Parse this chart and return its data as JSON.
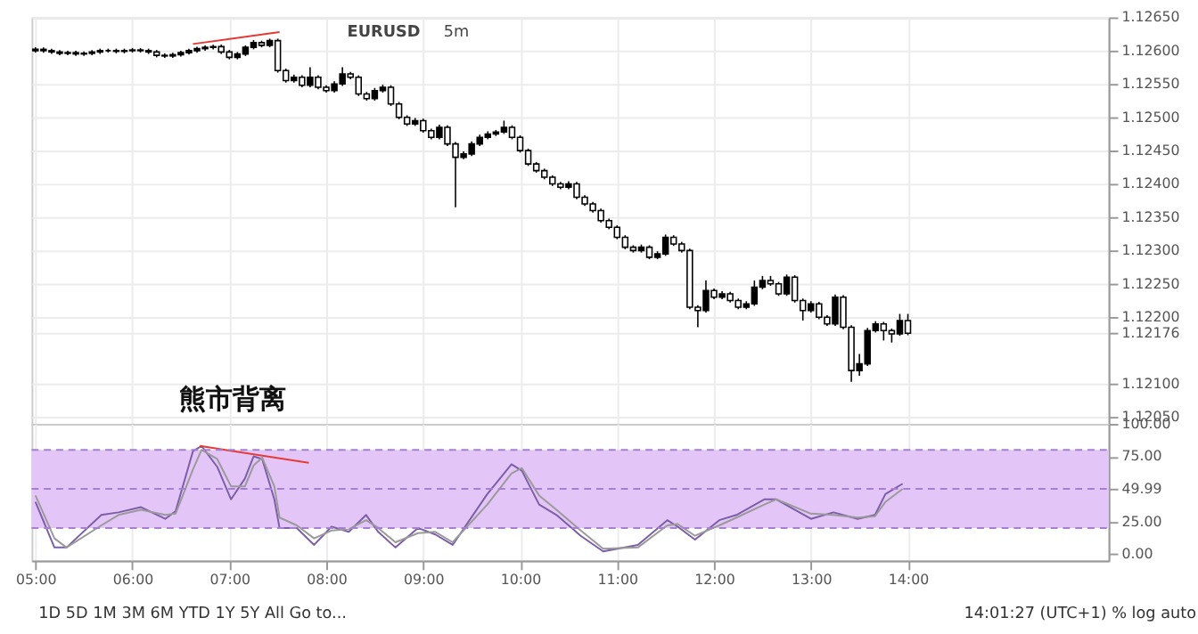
{
  "chart_data": [
    {
      "type": "candlestick",
      "title": "EURUSD",
      "subtitle": "5m",
      "xlim": [
        4.96,
        16.07
      ],
      "xticks": [
        5,
        6,
        7,
        8,
        9,
        10,
        11,
        12,
        13,
        14
      ],
      "ylim": [
        1.1204,
        1.1265
      ],
      "yticks": [
        {
          "value": 1.1265,
          "label": "1.12650"
        },
        {
          "value": 1.126,
          "label": "1.12600"
        },
        {
          "value": 1.1255,
          "label": "1.12550"
        },
        {
          "value": 1.125,
          "label": "1.12500"
        },
        {
          "value": 1.1245,
          "label": "1.12450"
        },
        {
          "value": 1.124,
          "label": "1.12400"
        },
        {
          "value": 1.1235,
          "label": "1.12350"
        },
        {
          "value": 1.123,
          "label": "1.12300"
        },
        {
          "value": 1.1225,
          "label": "1.12250"
        },
        {
          "value": 1.122,
          "label": "1.12200"
        },
        {
          "value": 1.12176,
          "label": "1.12176"
        },
        {
          "value": 1.121,
          "label": "1.12100"
        },
        {
          "value": 1.1205,
          "label": "1.12050"
        }
      ],
      "grid": true,
      "tick_labels": "y",
      "annotations": [
        "熊市背离"
      ],
      "series": [
        {
          "type": "candlestick",
          "color": "#000000",
          "x": [
            5,
            5.0833,
            5.1667,
            5.25,
            5.3333,
            5.4167,
            5.5,
            5.5833,
            5.6667,
            5.75,
            5.8333,
            5.9167,
            6,
            6.0833,
            6.1667,
            6.25,
            6.3333,
            6.4167,
            6.5,
            6.5833,
            6.6667,
            6.75,
            6.8333,
            6.9167,
            7,
            7.0833,
            7.1667,
            7.25,
            7.3333,
            7.4167,
            7.5,
            7.5833,
            7.6667,
            7.75,
            7.8333,
            7.9167,
            8,
            8.0833,
            8.1667,
            8.25,
            8.3333,
            8.4167,
            8.5,
            8.5833,
            8.6667,
            8.75,
            8.8333,
            8.9167,
            9,
            9.0833,
            9.1667,
            9.25,
            9.3333,
            9.4167,
            9.5,
            9.5833,
            9.6667,
            9.75,
            9.8333,
            9.9167,
            10,
            10.0833,
            10.1667,
            10.25,
            10.3333,
            10.4167,
            10.5,
            10.5833,
            10.6667,
            10.75,
            10.8333,
            10.9167,
            11,
            11.0833,
            11.1667,
            11.25,
            11.3333,
            11.4167,
            11.5,
            11.5833,
            11.6667,
            11.75,
            11.8333,
            11.9167,
            12,
            12.0833,
            12.1667,
            12.25,
            12.3333,
            12.4167,
            12.5,
            12.5833,
            12.6667,
            12.75,
            12.8333,
            12.9167,
            13,
            13.0833,
            13.1667,
            13.25,
            13.3333,
            13.4167,
            13.5,
            13.5833,
            13.6667,
            13.75,
            13.8333,
            13.9167,
            14
          ],
          "ohlc": [
            [
              1.126,
              1.12605,
              1.12597,
              1.12602
            ],
            [
              1.12602,
              1.12605,
              1.12597,
              1.126
            ],
            [
              1.126,
              1.12603,
              1.12595,
              1.12598
            ],
            [
              1.12598,
              1.12601,
              1.12593,
              1.12596
            ],
            [
              1.12596,
              1.126,
              1.12593,
              1.12597
            ],
            [
              1.12597,
              1.126,
              1.12592,
              1.12595
            ],
            [
              1.12595,
              1.12599,
              1.12592,
              1.12596
            ],
            [
              1.12596,
              1.12601,
              1.12593,
              1.12598
            ],
            [
              1.12598,
              1.12603,
              1.12595,
              1.126
            ],
            [
              1.126,
              1.12603,
              1.12597,
              1.126
            ],
            [
              1.126,
              1.12603,
              1.12596,
              1.12599
            ],
            [
              1.12599,
              1.12603,
              1.12596,
              1.126
            ],
            [
              1.126,
              1.12604,
              1.12597,
              1.12601
            ],
            [
              1.12601,
              1.12604,
              1.12597,
              1.126
            ],
            [
              1.126,
              1.12603,
              1.12595,
              1.12598
            ],
            [
              1.12598,
              1.12601,
              1.1259,
              1.12593
            ],
            [
              1.12593,
              1.12596,
              1.12589,
              1.12592
            ],
            [
              1.12592,
              1.12597,
              1.12589,
              1.12594
            ],
            [
              1.12594,
              1.126,
              1.12591,
              1.12597
            ],
            [
              1.12597,
              1.12603,
              1.12594,
              1.126
            ],
            [
              1.126,
              1.12606,
              1.12597,
              1.12603
            ],
            [
              1.12603,
              1.12608,
              1.126,
              1.12605
            ],
            [
              1.12605,
              1.12609,
              1.12602,
              1.12606
            ],
            [
              1.12606,
              1.12609,
              1.12595,
              1.12598
            ],
            [
              1.12598,
              1.12601,
              1.12587,
              1.1259
            ],
            [
              1.1259,
              1.12598,
              1.12587,
              1.12595
            ],
            [
              1.12595,
              1.12608,
              1.12592,
              1.12605
            ],
            [
              1.12605,
              1.12616,
              1.12602,
              1.12612
            ],
            [
              1.12612,
              1.12615,
              1.12605,
              1.12608
            ],
            [
              1.12608,
              1.12618,
              1.12605,
              1.12615
            ],
            [
              1.12615,
              1.12618,
              1.12567,
              1.1257
            ],
            [
              1.1257,
              1.12573,
              1.12552,
              1.12555
            ],
            [
              1.12555,
              1.12564,
              1.12552,
              1.1256
            ],
            [
              1.1256,
              1.12563,
              1.12545,
              1.12548
            ],
            [
              1.12548,
              1.12575,
              1.12545,
              1.1256
            ],
            [
              1.1256,
              1.12563,
              1.12542,
              1.12545
            ],
            [
              1.12545,
              1.12548,
              1.12537,
              1.1254
            ],
            [
              1.1254,
              1.12554,
              1.12537,
              1.1255
            ],
            [
              1.1255,
              1.12575,
              1.12547,
              1.12565
            ],
            [
              1.12565,
              1.12568,
              1.12557,
              1.1256
            ],
            [
              1.1256,
              1.12563,
              1.12532,
              1.12535
            ],
            [
              1.12535,
              1.12538,
              1.12525,
              1.12528
            ],
            [
              1.12528,
              1.12544,
              1.12525,
              1.1254
            ],
            [
              1.1254,
              1.12549,
              1.12537,
              1.12545
            ],
            [
              1.12545,
              1.12548,
              1.12517,
              1.1252
            ],
            [
              1.1252,
              1.12523,
              1.12497,
              1.125
            ],
            [
              1.125,
              1.12503,
              1.12487,
              1.1249
            ],
            [
              1.1249,
              1.12499,
              1.12487,
              1.12495
            ],
            [
              1.12495,
              1.12498,
              1.12477,
              1.1248
            ],
            [
              1.1248,
              1.12483,
              1.12467,
              1.1247
            ],
            [
              1.1247,
              1.12489,
              1.12467,
              1.12485
            ],
            [
              1.12485,
              1.12488,
              1.12457,
              1.1246
            ],
            [
              1.1246,
              1.12463,
              1.12365,
              1.1244
            ],
            [
              1.1244,
              1.12449,
              1.12437,
              1.12445
            ],
            [
              1.12445,
              1.12464,
              1.12442,
              1.1246
            ],
            [
              1.1246,
              1.12474,
              1.12457,
              1.1247
            ],
            [
              1.1247,
              1.12479,
              1.12467,
              1.12475
            ],
            [
              1.12475,
              1.12481,
              1.12472,
              1.12478
            ],
            [
              1.12478,
              1.12495,
              1.12475,
              1.12485
            ],
            [
              1.12485,
              1.12488,
              1.12467,
              1.1247
            ],
            [
              1.1247,
              1.12473,
              1.12447,
              1.1245
            ],
            [
              1.1245,
              1.12453,
              1.12427,
              1.1243
            ],
            [
              1.1243,
              1.12433,
              1.12417,
              1.1242
            ],
            [
              1.1242,
              1.12423,
              1.12407,
              1.1241
            ],
            [
              1.1241,
              1.12413,
              1.12397,
              1.124
            ],
            [
              1.124,
              1.12403,
              1.12392,
              1.12395
            ],
            [
              1.12395,
              1.12404,
              1.12392,
              1.124
            ],
            [
              1.124,
              1.12403,
              1.12377,
              1.1238
            ],
            [
              1.1238,
              1.12383,
              1.12367,
              1.1237
            ],
            [
              1.1237,
              1.12373,
              1.12357,
              1.1236
            ],
            [
              1.1236,
              1.12363,
              1.12342,
              1.12345
            ],
            [
              1.12345,
              1.12348,
              1.12332,
              1.12335
            ],
            [
              1.12335,
              1.12338,
              1.12317,
              1.1232
            ],
            [
              1.1232,
              1.12323,
              1.12302,
              1.12305
            ],
            [
              1.12305,
              1.12308,
              1.12297,
              1.123
            ],
            [
              1.123,
              1.12309,
              1.12297,
              1.12305
            ],
            [
              1.12305,
              1.12308,
              1.12287,
              1.1229
            ],
            [
              1.1229,
              1.12299,
              1.12287,
              1.12295
            ],
            [
              1.12295,
              1.12324,
              1.12292,
              1.1232
            ],
            [
              1.1232,
              1.12323,
              1.12307,
              1.1231
            ],
            [
              1.1231,
              1.12313,
              1.12297,
              1.123
            ],
            [
              1.123,
              1.12303,
              1.12212,
              1.12215
            ],
            [
              1.12215,
              1.12218,
              1.12185,
              1.1221
            ],
            [
              1.1221,
              1.12255,
              1.12207,
              1.1224
            ],
            [
              1.1224,
              1.12243,
              1.12227,
              1.1223
            ],
            [
              1.1223,
              1.12239,
              1.12227,
              1.12235
            ],
            [
              1.12235,
              1.12238,
              1.12222,
              1.12225
            ],
            [
              1.12225,
              1.12228,
              1.12212,
              1.12215
            ],
            [
              1.12215,
              1.12224,
              1.12212,
              1.1222
            ],
            [
              1.1222,
              1.12255,
              1.12217,
              1.12245
            ],
            [
              1.12245,
              1.12262,
              1.12242,
              1.12255
            ],
            [
              1.12255,
              1.12262,
              1.12247,
              1.1225
            ],
            [
              1.1225,
              1.12253,
              1.12232,
              1.12235
            ],
            [
              1.12235,
              1.12264,
              1.12232,
              1.1226
            ],
            [
              1.1226,
              1.12263,
              1.12222,
              1.12225
            ],
            [
              1.12225,
              1.12228,
              1.12195,
              1.1221
            ],
            [
              1.1221,
              1.12224,
              1.12207,
              1.1222
            ],
            [
              1.1222,
              1.12223,
              1.12197,
              1.122
            ],
            [
              1.122,
              1.12203,
              1.12187,
              1.1219
            ],
            [
              1.1219,
              1.12234,
              1.12187,
              1.1223
            ],
            [
              1.1223,
              1.12233,
              1.12182,
              1.12185
            ],
            [
              1.12185,
              1.12188,
              1.12103,
              1.1212
            ],
            [
              1.1212,
              1.12145,
              1.12112,
              1.1213
            ],
            [
              1.1213,
              1.12184,
              1.12127,
              1.1218
            ],
            [
              1.1218,
              1.12194,
              1.12177,
              1.1219
            ],
            [
              1.1219,
              1.12193,
              1.12165,
              1.1218
            ],
            [
              1.1218,
              1.12183,
              1.12162,
              1.12175
            ],
            [
              1.12175,
              1.12205,
              1.12172,
              1.12195
            ],
            [
              1.12195,
              1.12205,
              1.12173,
              1.12176
            ]
          ]
        },
        {
          "type": "line",
          "color": "#e53935",
          "x": [
            6.625,
            7.518
          ],
          "values": [
            1.1261,
            1.12628
          ]
        }
      ]
    },
    {
      "type": "line",
      "xlim": [
        4.96,
        16.07
      ],
      "xticks": [
        {
          "value": 5,
          "label": "05:00"
        },
        {
          "value": 6,
          "label": "06:00"
        },
        {
          "value": 7,
          "label": "07:00"
        },
        {
          "value": 8,
          "label": "08:00"
        },
        {
          "value": 9,
          "label": "09:00"
        },
        {
          "value": 10,
          "label": "10:00"
        },
        {
          "value": 11,
          "label": "11:00"
        },
        {
          "value": 12,
          "label": "12:00"
        },
        {
          "value": 13,
          "label": "13:00"
        },
        {
          "value": 14,
          "label": "14:00"
        }
      ],
      "ylim": [
        -5,
        100
      ],
      "yticks": [
        {
          "value": 0,
          "label": "0.00"
        },
        {
          "value": 25,
          "label": "25.00"
        },
        {
          "value": 49.99,
          "label": "49.99"
        },
        {
          "value": 75,
          "label": "75.00"
        },
        {
          "value": 100,
          "label": "100.00"
        }
      ],
      "grid": "x",
      "bands": [
        {
          "axis": "y",
          "from": 20,
          "to": 80,
          "color": "#e3c6f7"
        }
      ],
      "ref_lines": [
        {
          "axis": "y",
          "value": 80,
          "color": "#a77fd0",
          "line_style": "dashed"
        },
        {
          "axis": "y",
          "value": 50,
          "color": "#a77fd0",
          "line_style": "dashed"
        },
        {
          "axis": "y",
          "value": 20,
          "color": "#a77fd0",
          "line_style": "dashed"
        }
      ],
      "annotations": [
        "1D   5D   1M   3M   6M   YTD   1Y   5Y   All      Go to...",
        "14:01:27 (UTC+1)     %    log    auto"
      ],
      "series": [
        {
          "color": "#7b5ea7",
          "x": [
            5,
            5.196,
            5.32,
            5.68,
            5.857,
            6.089,
            6.339,
            6.446,
            6.625,
            6.714,
            6.875,
            7.018,
            7.161,
            7.25,
            7.339,
            7.464,
            7.518,
            7.696,
            7.875,
            8.054,
            8.232,
            8.411,
            8.536,
            8.714,
            8.946,
            9.125,
            9.304,
            9.661,
            9.911,
            10.018,
            10.196,
            10.375,
            10.625,
            10.857,
            11.214,
            11.518,
            11.625,
            11.804,
            12.054,
            12.232,
            12.518,
            12.643,
            13,
            13.232,
            13.482,
            13.661,
            13.768,
            13.946
          ],
          "values": [
            40,
            5,
            5,
            30,
            32,
            36,
            27,
            33,
            79,
            83,
            67,
            42,
            58,
            75,
            73,
            42,
            20,
            20,
            7,
            21,
            17,
            30,
            17,
            5,
            20,
            15,
            7,
            46,
            69,
            64,
            38,
            30,
            14,
            2,
            7,
            26,
            21,
            11,
            26,
            30,
            42,
            42,
            27,
            32,
            27,
            30,
            46,
            54
          ]
        },
        {
          "color": "#9a9a9a",
          "x": [
            5,
            5.196,
            5.32,
            5.68,
            5.857,
            6.089,
            6.339,
            6.446,
            6.625,
            6.714,
            6.875,
            7.018,
            7.161,
            7.25,
            7.339,
            7.464,
            7.518,
            7.696,
            7.875,
            8.054,
            8.232,
            8.411,
            8.536,
            8.714,
            8.946,
            9.125,
            9.304,
            9.661,
            9.911,
            10.018,
            10.196,
            10.375,
            10.625,
            10.857,
            11.214,
            11.518,
            11.625,
            11.804,
            12.054,
            12.232,
            12.518,
            12.643,
            13,
            13.232,
            13.482,
            13.661,
            13.768,
            13.946
          ],
          "values": [
            45,
            12,
            5,
            22,
            30,
            34,
            30,
            31,
            65,
            80,
            73,
            52,
            52,
            68,
            74,
            52,
            28,
            22,
            12,
            18,
            19,
            26,
            20,
            9,
            16,
            17,
            9,
            38,
            62,
            66,
            45,
            34,
            18,
            4,
            5,
            22,
            23,
            14,
            22,
            28,
            38,
            42,
            31,
            30,
            28,
            29,
            40,
            50
          ]
        },
        {
          "color": "#e53935",
          "x": [
            6.696,
            7.82
          ],
          "values": [
            83,
            70
          ]
        }
      ]
    }
  ]
}
